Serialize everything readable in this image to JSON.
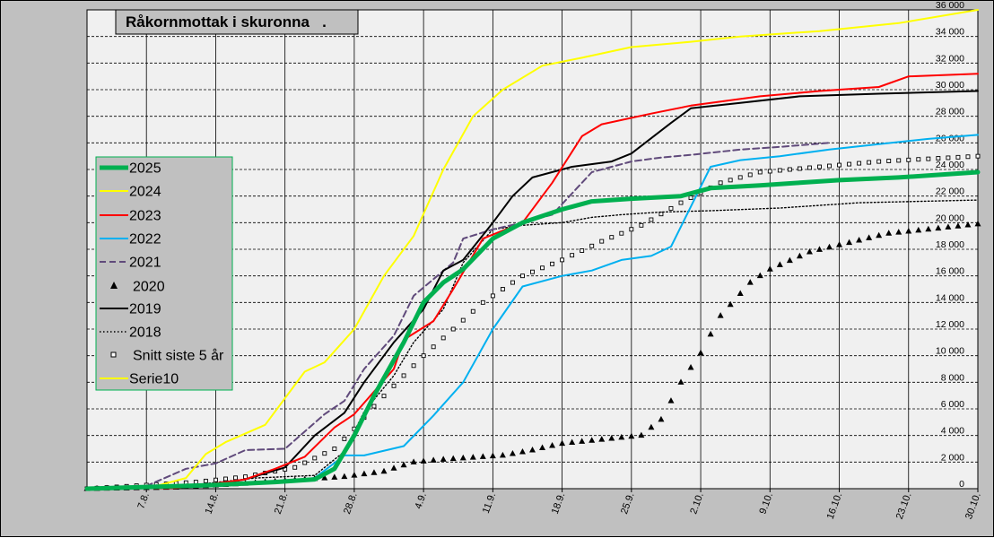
{
  "chart_data": {
    "type": "line",
    "title": "Råkornmottak i skuronna   .",
    "xlabel": "",
    "ylabel": "",
    "x_ticks": [
      "7.8.",
      "14.8.",
      "21.8.",
      "28.8.",
      "4.9.",
      "11.9.",
      "18.9.",
      "25.9.",
      "2.10.",
      "9.10.",
      "16.10.",
      "23.10.",
      "30.10."
    ],
    "xlim": [
      "2025-08-01",
      "2025-10-30"
    ],
    "ylim": [
      0,
      36000
    ],
    "y_ticks": [
      "0",
      "2 000",
      "4 000",
      "6 000",
      "8 000",
      "10 000",
      "12 000",
      "14 000",
      "16 000",
      "18 000",
      "20 000",
      "22 000",
      "24 000",
      "26 000",
      "28 000",
      "30 000",
      "32 000",
      "34 000",
      "36 000"
    ],
    "grid": "horizontal dashed, vertical solid",
    "legend_position": "left",
    "series": [
      {
        "name": "2025",
        "color": "#00b050",
        "style": "thick-line",
        "points": [
          [
            "2025-08-01",
            0
          ],
          [
            "2025-08-13",
            250
          ],
          [
            "2025-08-20",
            500
          ],
          [
            "2025-08-24",
            700
          ],
          [
            "2025-08-26",
            1500
          ],
          [
            "2025-08-28",
            4000
          ],
          [
            "2025-08-30",
            7000
          ],
          [
            "2025-09-02",
            11000
          ],
          [
            "2025-09-04",
            14000
          ],
          [
            "2025-09-06",
            15500
          ],
          [
            "2025-09-08",
            16500
          ],
          [
            "2025-09-11",
            18800
          ],
          [
            "2025-09-14",
            20000
          ],
          [
            "2025-09-18",
            21000
          ],
          [
            "2025-09-21",
            21600
          ],
          [
            "2025-09-25",
            21800
          ],
          [
            "2025-09-30",
            22000
          ],
          [
            "2025-10-03",
            22600
          ],
          [
            "2025-10-08",
            22800
          ],
          [
            "2025-10-12",
            23000
          ],
          [
            "2025-10-16",
            23200
          ],
          [
            "2025-10-22",
            23400
          ],
          [
            "2025-10-30",
            23800
          ]
        ]
      },
      {
        "name": "2024",
        "color": "#ffff00",
        "style": "line",
        "points": [
          [
            "2025-08-01",
            0
          ],
          [
            "2025-08-08",
            200
          ],
          [
            "2025-08-11",
            800
          ],
          [
            "2025-08-13",
            2600
          ],
          [
            "2025-08-15",
            3500
          ],
          [
            "2025-08-19",
            4800
          ],
          [
            "2025-08-23",
            8800
          ],
          [
            "2025-08-25",
            9500
          ],
          [
            "2025-08-28",
            12000
          ],
          [
            "2025-08-31",
            16000
          ],
          [
            "2025-09-03",
            19000
          ],
          [
            "2025-09-06",
            24000
          ],
          [
            "2025-09-09",
            28000
          ],
          [
            "2025-09-12",
            30000
          ],
          [
            "2025-09-16",
            31800
          ],
          [
            "2025-09-20",
            32400
          ],
          [
            "2025-09-25",
            33200
          ],
          [
            "2025-10-01",
            33600
          ],
          [
            "2025-10-06",
            34000
          ],
          [
            "2025-10-14",
            34400
          ],
          [
            "2025-10-22",
            35000
          ],
          [
            "2025-10-30",
            36000
          ]
        ]
      },
      {
        "name": "2023",
        "color": "#ff0000",
        "style": "line",
        "points": [
          [
            "2025-08-01",
            0
          ],
          [
            "2025-08-10",
            50
          ],
          [
            "2025-08-13",
            300
          ],
          [
            "2025-08-17",
            700
          ],
          [
            "2025-08-20",
            1500
          ],
          [
            "2025-08-23",
            2400
          ],
          [
            "2025-08-26",
            4600
          ],
          [
            "2025-08-28",
            5600
          ],
          [
            "2025-09-01",
            9000
          ],
          [
            "2025-09-02",
            11200
          ],
          [
            "2025-09-05",
            12600
          ],
          [
            "2025-09-07",
            15000
          ],
          [
            "2025-09-10",
            18800
          ],
          [
            "2025-09-14",
            20000
          ],
          [
            "2025-09-17",
            23000
          ],
          [
            "2025-09-20",
            26500
          ],
          [
            "2025-09-22",
            27400
          ],
          [
            "2025-09-27",
            28200
          ],
          [
            "2025-10-01",
            28800
          ],
          [
            "2025-10-08",
            29500
          ],
          [
            "2025-10-14",
            29900
          ],
          [
            "2025-10-20",
            30200
          ],
          [
            "2025-10-23",
            31000
          ],
          [
            "2025-10-30",
            31200
          ]
        ]
      },
      {
        "name": "2022",
        "color": "#00b0f0",
        "style": "line",
        "points": [
          [
            "2025-08-01",
            0
          ],
          [
            "2025-08-18",
            400
          ],
          [
            "2025-08-24",
            800
          ],
          [
            "2025-08-27",
            2500
          ],
          [
            "2025-08-29",
            2500
          ],
          [
            "2025-09-02",
            3200
          ],
          [
            "2025-09-05",
            5500
          ],
          [
            "2025-09-08",
            8000
          ],
          [
            "2025-09-11",
            12000
          ],
          [
            "2025-09-14",
            15200
          ],
          [
            "2025-09-18",
            16000
          ],
          [
            "2025-09-21",
            16400
          ],
          [
            "2025-09-24",
            17200
          ],
          [
            "2025-09-27",
            17500
          ],
          [
            "2025-09-29",
            18200
          ],
          [
            "2025-10-03",
            24200
          ],
          [
            "2025-10-06",
            24700
          ],
          [
            "2025-10-10",
            25000
          ],
          [
            "2025-10-15",
            25500
          ],
          [
            "2025-10-20",
            25900
          ],
          [
            "2025-10-25",
            26300
          ],
          [
            "2025-10-30",
            26600
          ]
        ]
      },
      {
        "name": "2021",
        "color": "#604a7b",
        "style": "dashed",
        "points": [
          [
            "2025-08-01",
            0
          ],
          [
            "2025-08-07",
            200
          ],
          [
            "2025-08-11",
            1500
          ],
          [
            "2025-08-14",
            1900
          ],
          [
            "2025-08-17",
            2900
          ],
          [
            "2025-08-21",
            3000
          ],
          [
            "2025-08-25",
            5600
          ],
          [
            "2025-08-27",
            6600
          ],
          [
            "2025-08-29",
            9000
          ],
          [
            "2025-09-01",
            11500
          ],
          [
            "2025-09-03",
            14500
          ],
          [
            "2025-09-07",
            17000
          ],
          [
            "2025-09-08",
            18800
          ],
          [
            "2025-09-11",
            19500
          ],
          [
            "2025-09-14",
            20000
          ],
          [
            "2025-09-17",
            20600
          ],
          [
            "2025-09-21",
            23800
          ],
          [
            "2025-09-25",
            24600
          ],
          [
            "2025-09-28",
            24900
          ],
          [
            "2025-10-01",
            25100
          ],
          [
            "2025-10-06",
            25500
          ],
          [
            "2025-10-10",
            25700
          ],
          [
            "2025-10-15",
            26000
          ]
        ]
      },
      {
        "name": "2020",
        "color": "#000000",
        "style": "triangles",
        "points": [
          [
            "2025-08-01",
            0
          ],
          [
            "2025-08-10",
            100
          ],
          [
            "2025-08-15",
            300
          ],
          [
            "2025-08-21",
            600
          ],
          [
            "2025-08-27",
            900
          ],
          [
            "2025-08-31",
            1300
          ],
          [
            "2025-09-03",
            2000
          ],
          [
            "2025-09-06",
            2200
          ],
          [
            "2025-09-12",
            2500
          ],
          [
            "2025-09-15",
            2900
          ],
          [
            "2025-09-18",
            3400
          ],
          [
            "2025-09-22",
            3700
          ],
          [
            "2025-09-26",
            4000
          ],
          [
            "2025-09-28",
            5200
          ],
          [
            "2025-09-30",
            8000
          ],
          [
            "2025-10-02",
            10200
          ],
          [
            "2025-10-04",
            13000
          ],
          [
            "2025-10-07",
            15500
          ],
          [
            "2025-10-09",
            16500
          ],
          [
            "2025-10-13",
            17800
          ],
          [
            "2025-10-17",
            18500
          ],
          [
            "2025-10-21",
            19200
          ],
          [
            "2025-10-25",
            19500
          ],
          [
            "2025-10-30",
            19900
          ]
        ]
      },
      {
        "name": "2019",
        "color": "#000000",
        "style": "line",
        "points": [
          [
            "2025-08-01",
            0
          ],
          [
            "2025-08-13",
            200
          ],
          [
            "2025-08-17",
            700
          ],
          [
            "2025-08-21",
            1600
          ],
          [
            "2025-08-24",
            4000
          ],
          [
            "2025-08-27",
            5700
          ],
          [
            "2025-08-29",
            8000
          ],
          [
            "2025-09-01",
            11000
          ],
          [
            "2025-09-04",
            13500
          ],
          [
            "2025-09-06",
            16400
          ],
          [
            "2025-09-08",
            17200
          ],
          [
            "2025-09-11",
            20000
          ],
          [
            "2025-09-13",
            22000
          ],
          [
            "2025-09-15",
            23400
          ],
          [
            "2025-09-19",
            24200
          ],
          [
            "2025-09-23",
            24600
          ],
          [
            "2025-09-25",
            25200
          ],
          [
            "2025-09-29",
            27500
          ],
          [
            "2025-10-01",
            28600
          ],
          [
            "2025-10-06",
            29000
          ],
          [
            "2025-10-12",
            29500
          ],
          [
            "2025-10-20",
            29700
          ],
          [
            "2025-10-30",
            29900
          ]
        ]
      },
      {
        "name": "2018",
        "color": "#000000",
        "style": "dotted",
        "points": [
          [
            "2025-08-01",
            0
          ],
          [
            "2025-08-12",
            300
          ],
          [
            "2025-08-18",
            800
          ],
          [
            "2025-08-24",
            1000
          ],
          [
            "2025-08-27",
            2800
          ],
          [
            "2025-08-29",
            5800
          ],
          [
            "2025-09-01",
            8500
          ],
          [
            "2025-09-03",
            11000
          ],
          [
            "2025-09-06",
            13500
          ],
          [
            "2025-09-08",
            17000
          ],
          [
            "2025-09-11",
            19500
          ],
          [
            "2025-09-14",
            19800
          ],
          [
            "2025-09-18",
            20000
          ],
          [
            "2025-09-21",
            20400
          ],
          [
            "2025-09-24",
            20600
          ],
          [
            "2025-09-28",
            20800
          ],
          [
            "2025-10-03",
            20900
          ],
          [
            "2025-10-10",
            21100
          ],
          [
            "2025-10-18",
            21500
          ],
          [
            "2025-10-30",
            21700
          ]
        ]
      },
      {
        "name": "Snitt siste 5 år",
        "color": "#000000",
        "style": "squares",
        "points": [
          [
            "2025-08-01",
            0
          ],
          [
            "2025-08-12",
            500
          ],
          [
            "2025-08-17",
            900
          ],
          [
            "2025-08-22",
            1600
          ],
          [
            "2025-08-26",
            3000
          ],
          [
            "2025-08-28",
            4500
          ],
          [
            "2025-08-30",
            6200
          ],
          [
            "2025-09-02",
            8500
          ],
          [
            "2025-09-04",
            10000
          ],
          [
            "2025-09-07",
            12000
          ],
          [
            "2025-09-10",
            14000
          ],
          [
            "2025-09-14",
            16000
          ],
          [
            "2025-09-18",
            17200
          ],
          [
            "2025-09-22",
            18600
          ],
          [
            "2025-09-26",
            19800
          ],
          [
            "2025-09-30",
            21500
          ],
          [
            "2025-10-04",
            23000
          ],
          [
            "2025-10-08",
            23800
          ],
          [
            "2025-10-14",
            24200
          ],
          [
            "2025-10-20",
            24600
          ],
          [
            "2025-10-30",
            25000
          ]
        ]
      },
      {
        "name": "Serie10",
        "color": "#ffff00",
        "style": "line",
        "points": []
      }
    ]
  }
}
